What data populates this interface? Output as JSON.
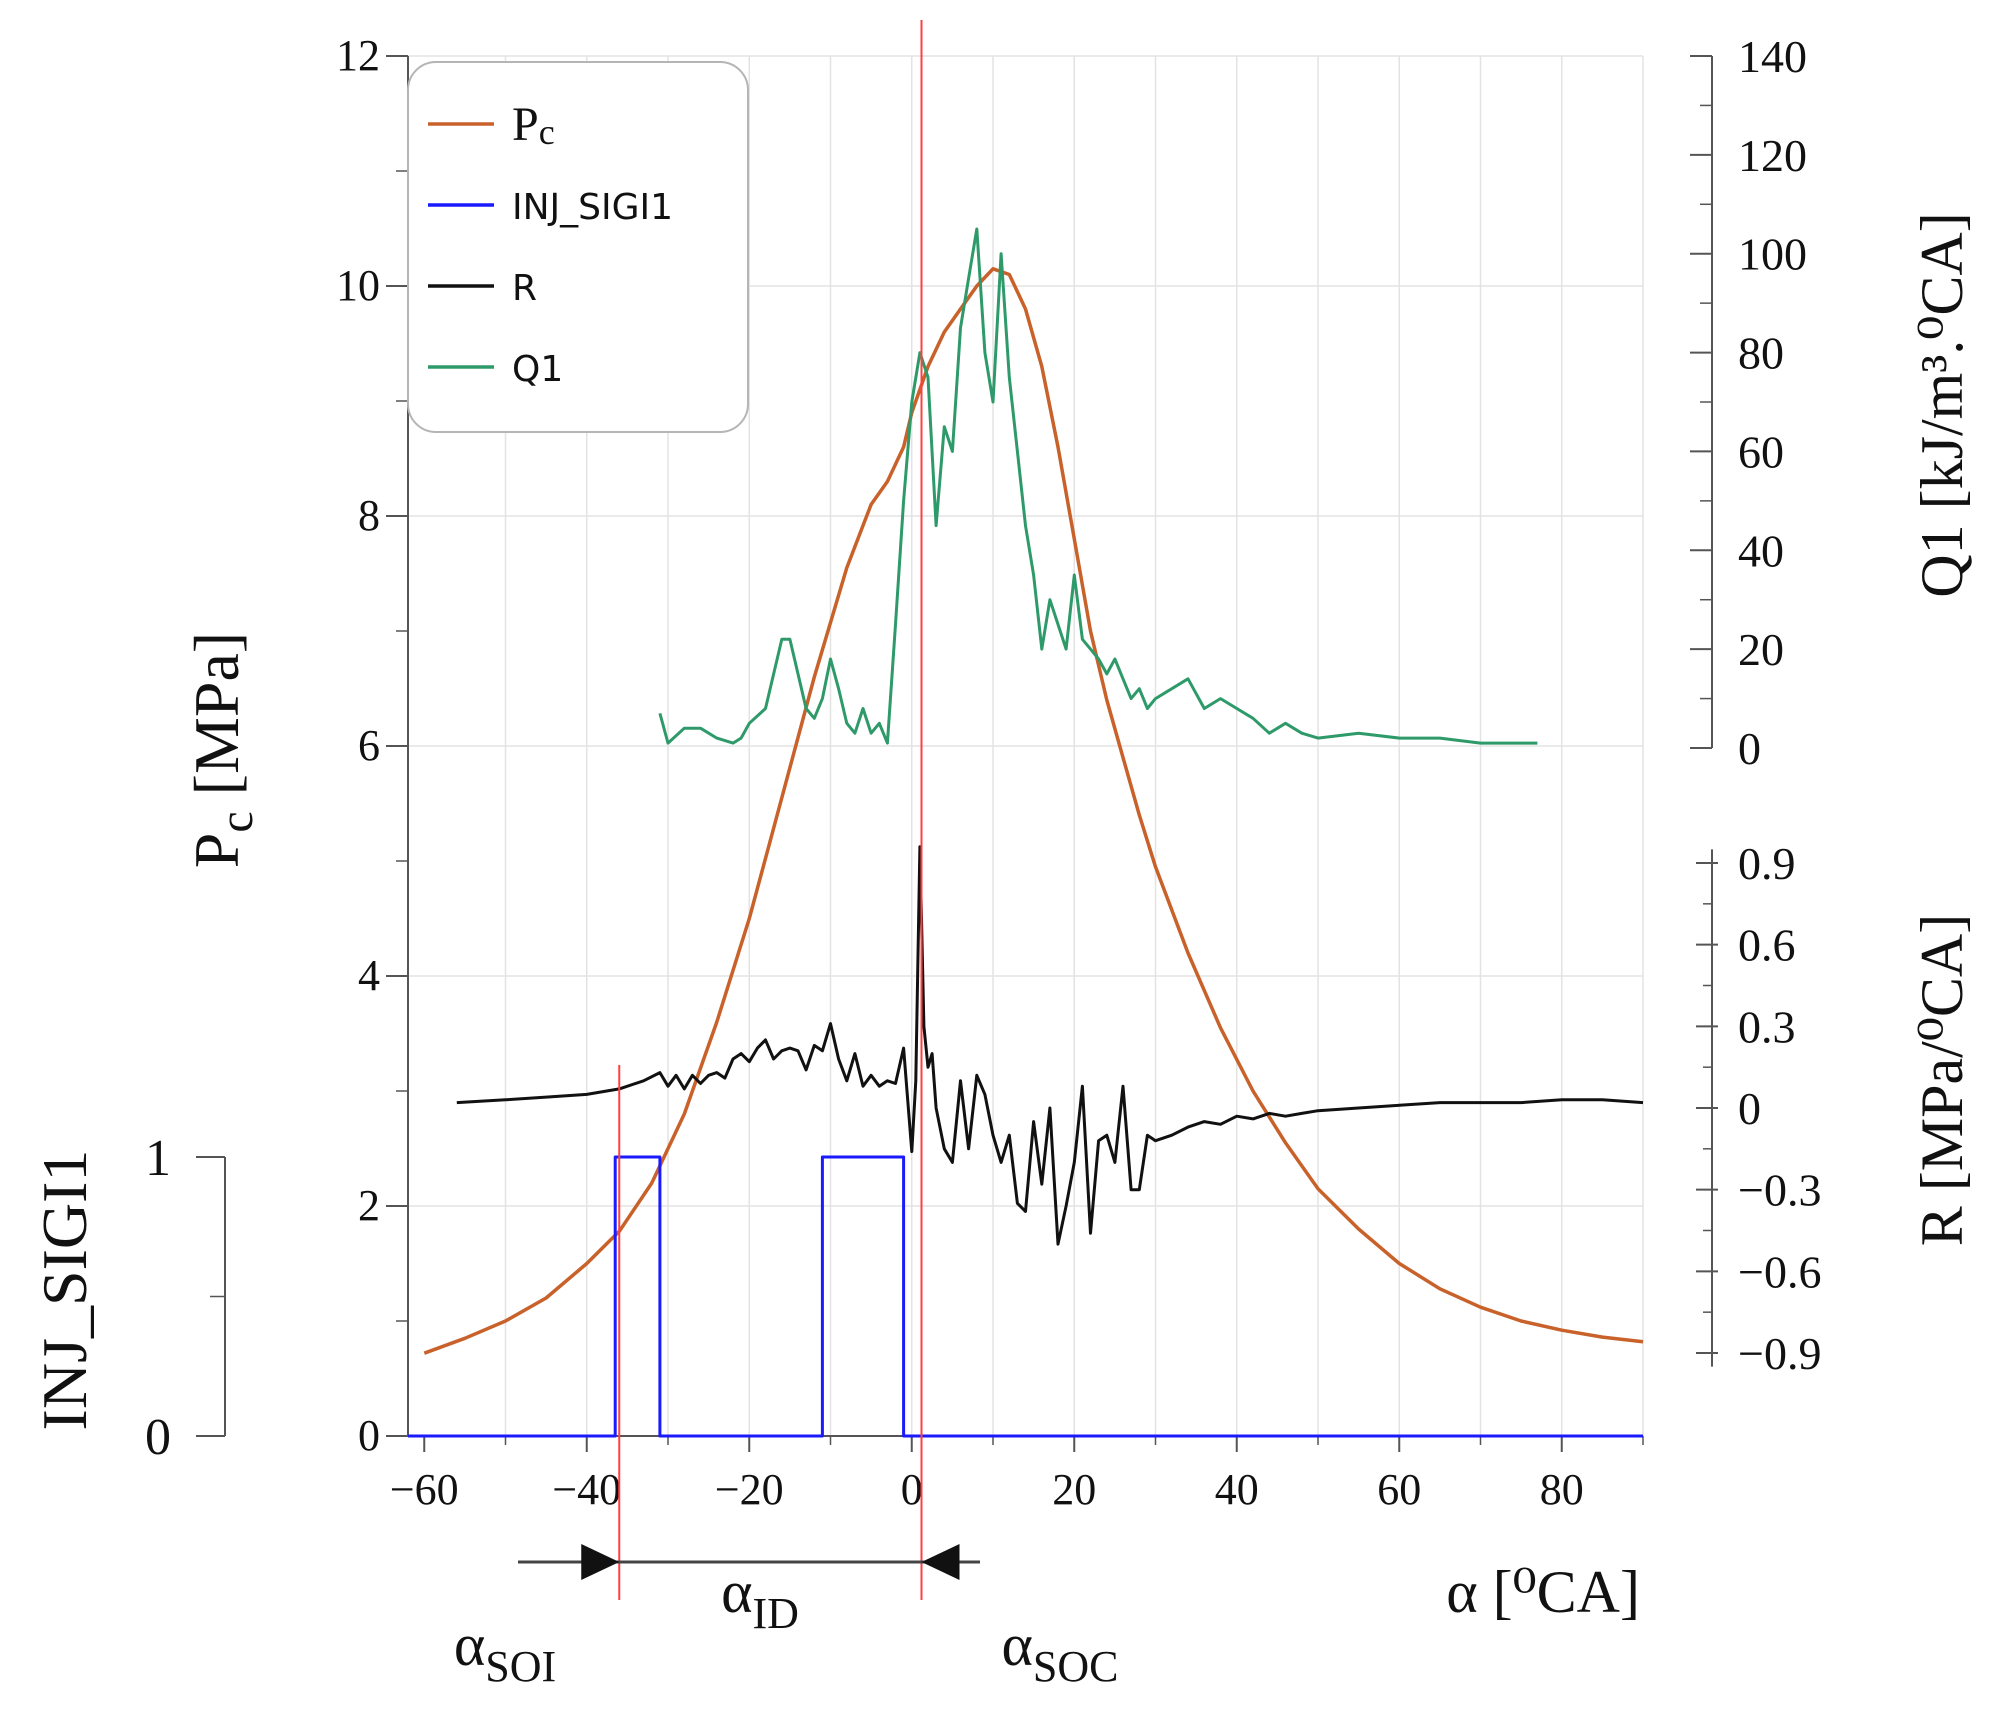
{
  "chart_data": {
    "type": "line",
    "x": {
      "label": "α [⁰CA]",
      "lim": [
        -62,
        90
      ],
      "ticks": [
        -60,
        -40,
        -20,
        0,
        20,
        40,
        60,
        80
      ],
      "tick_labels": [
        "−60",
        "−40",
        "−20",
        "0",
        "20",
        "40",
        "60",
        "80"
      ],
      "minor_every": 10
    },
    "axes": {
      "pc": {
        "label_main": "P",
        "label_sub": "c",
        "label_unit": " [MPa]",
        "lim": [
          0,
          12
        ],
        "ticks": [
          0,
          2,
          4,
          6,
          8,
          10,
          12
        ],
        "grid": true
      },
      "inj": {
        "label": "INJ_SIGI1",
        "lim": [
          0,
          1
        ],
        "ticks": [
          0,
          1
        ],
        "tick_labels": [
          "0",
          "1"
        ]
      },
      "q1": {
        "label": "Q1 [kJ/m³.⁰CA]",
        "lim": [
          0,
          140
        ],
        "ticks": [
          0,
          20,
          40,
          60,
          80,
          100,
          120,
          140
        ]
      },
      "r": {
        "label": "R [MPa/⁰CA]",
        "lim": [
          -0.95,
          0.95
        ],
        "ticks": [
          -0.9,
          -0.6,
          -0.3,
          0,
          0.3,
          0.6,
          0.9
        ],
        "tick_labels": [
          "−0.9",
          "−0.6",
          "−0.3",
          "0",
          "0.3",
          "0.6",
          "0.9"
        ]
      }
    },
    "legend": {
      "position": "top-left",
      "entries": [
        {
          "key": "pc",
          "label_main": "P",
          "label_sub": "c",
          "color": "#c8612a"
        },
        {
          "key": "inj",
          "label": "INJ_SIGI1",
          "color": "#1a1aff"
        },
        {
          "key": "r",
          "label": "R",
          "color": "#111111"
        },
        {
          "key": "q1",
          "label": "Q1",
          "color": "#2e9a6a"
        }
      ]
    },
    "series": [
      {
        "name": "Pc",
        "axis": "pc",
        "color": "#c8612a",
        "x": [
          -60,
          -55,
          -50,
          -45,
          -40,
          -36,
          -32,
          -28,
          -24,
          -20,
          -16,
          -12,
          -8,
          -5,
          -3,
          -1,
          0,
          2,
          4,
          6,
          8,
          10,
          12,
          14,
          16,
          18,
          20,
          22,
          24,
          26,
          28,
          30,
          34,
          38,
          42,
          46,
          50,
          55,
          60,
          65,
          70,
          75,
          80,
          85,
          90
        ],
        "y": [
          0.72,
          0.85,
          1.0,
          1.2,
          1.5,
          1.78,
          2.2,
          2.8,
          3.6,
          4.5,
          5.55,
          6.6,
          7.55,
          8.1,
          8.3,
          8.6,
          8.9,
          9.3,
          9.6,
          9.8,
          10.0,
          10.15,
          10.1,
          9.8,
          9.3,
          8.6,
          7.8,
          7.0,
          6.4,
          5.9,
          5.4,
          4.95,
          4.2,
          3.55,
          3.0,
          2.55,
          2.15,
          1.8,
          1.5,
          1.28,
          1.12,
          1.0,
          0.92,
          0.86,
          0.82
        ]
      },
      {
        "name": "INJ_SIGI1",
        "axis": "inj",
        "color": "#1a1aff",
        "x": [
          -62,
          -36.5,
          -36.5,
          -31,
          -31,
          -11,
          -11,
          -1,
          -1,
          90
        ],
        "y": [
          0,
          0,
          1,
          1,
          0,
          0,
          1,
          1,
          0,
          0
        ]
      },
      {
        "name": "R",
        "axis": "r",
        "color": "#111111",
        "x": [
          -56,
          -50,
          -45,
          -40,
          -36,
          -33,
          -31,
          -30,
          -29,
          -28,
          -27,
          -26,
          -25,
          -24,
          -23,
          -22,
          -21,
          -20,
          -19,
          -18,
          -17,
          -16,
          -15,
          -14,
          -13,
          -12,
          -11,
          -10,
          -9,
          -8,
          -7,
          -6,
          -5,
          -4,
          -3,
          -2,
          -1,
          0,
          0.5,
          1,
          1.5,
          2,
          2.5,
          3,
          4,
          5,
          6,
          7,
          8,
          9,
          10,
          11,
          12,
          13,
          14,
          15,
          16,
          17,
          18,
          19,
          20,
          21,
          22,
          23,
          24,
          25,
          26,
          27,
          28,
          29,
          30,
          32,
          34,
          36,
          38,
          40,
          42,
          44,
          46,
          48,
          50,
          55,
          60,
          65,
          70,
          75,
          80,
          85,
          90
        ],
        "y": [
          0.02,
          0.03,
          0.04,
          0.05,
          0.07,
          0.1,
          0.13,
          0.08,
          0.12,
          0.07,
          0.12,
          0.09,
          0.12,
          0.13,
          0.11,
          0.18,
          0.2,
          0.17,
          0.22,
          0.25,
          0.18,
          0.21,
          0.22,
          0.21,
          0.14,
          0.23,
          0.21,
          0.31,
          0.18,
          0.1,
          0.2,
          0.08,
          0.12,
          0.08,
          0.1,
          0.09,
          0.22,
          -0.16,
          0.1,
          0.96,
          0.3,
          0.15,
          0.2,
          0.0,
          -0.15,
          -0.2,
          0.1,
          -0.15,
          0.12,
          0.05,
          -0.1,
          -0.2,
          -0.1,
          -0.35,
          -0.38,
          -0.05,
          -0.28,
          0.0,
          -0.5,
          -0.36,
          -0.2,
          0.08,
          -0.46,
          -0.12,
          -0.1,
          -0.2,
          0.08,
          -0.3,
          -0.3,
          -0.1,
          -0.12,
          -0.1,
          -0.07,
          -0.05,
          -0.06,
          -0.03,
          -0.04,
          -0.02,
          -0.03,
          -0.02,
          -0.01,
          0.0,
          0.01,
          0.02,
          0.02,
          0.02,
          0.03,
          0.03,
          0.02
        ]
      },
      {
        "name": "Q1",
        "axis": "q1",
        "color": "#2e9a6a",
        "x": [
          -31,
          -30,
          -28,
          -26,
          -24,
          -22,
          -21,
          -20,
          -18,
          -16,
          -15,
          -14,
          -13,
          -12,
          -11,
          -10,
          -9,
          -8,
          -7,
          -6,
          -5,
          -4,
          -3,
          -2,
          -1,
          0,
          1,
          2,
          3,
          4,
          5,
          6,
          7,
          8,
          9,
          10,
          11,
          12,
          13,
          14,
          15,
          16,
          17,
          18,
          19,
          20,
          21,
          22,
          23,
          24,
          25,
          26,
          27,
          28,
          29,
          30,
          32,
          34,
          36,
          38,
          40,
          42,
          44,
          46,
          48,
          50,
          55,
          60,
          65,
          70,
          75,
          77
        ],
        "y": [
          7,
          1,
          4,
          4,
          2,
          1,
          2,
          5,
          8,
          22,
          22,
          15,
          8,
          6,
          10,
          18,
          12,
          5,
          3,
          8,
          3,
          5,
          1,
          25,
          50,
          70,
          80,
          75,
          45,
          65,
          60,
          85,
          95,
          105,
          80,
          70,
          100,
          75,
          60,
          45,
          35,
          20,
          30,
          25,
          20,
          35,
          22,
          20,
          18,
          15,
          18,
          14,
          10,
          12,
          8,
          10,
          12,
          14,
          8,
          10,
          8,
          6,
          3,
          5,
          3,
          2,
          3,
          2,
          2,
          1,
          1,
          1
        ]
      }
    ],
    "annotations": {
      "alpha_soi": {
        "symbol": "α",
        "sub": "SOI",
        "x": -36
      },
      "alpha_id": {
        "symbol": "α",
        "sub": "ID"
      },
      "alpha_soc": {
        "symbol": "α",
        "sub": "SOC",
        "x": 1.2
      },
      "marker_color": "#ff4040"
    }
  }
}
